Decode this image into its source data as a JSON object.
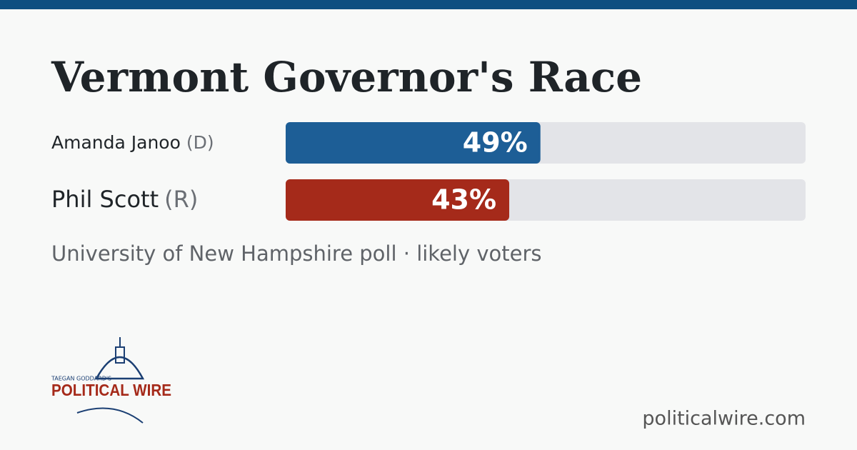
{
  "chart_data": {
    "type": "bar",
    "title": "Vermont Governor's Race",
    "categories": [
      "Amanda Janoo",
      "Phil Scott"
    ],
    "parties": [
      "(D)",
      "(R)"
    ],
    "values": [
      49,
      43
    ],
    "value_labels": [
      "49%",
      "43%"
    ],
    "colors": [
      "#1d5e96",
      "#a52a1a"
    ],
    "xlim": [
      0,
      100
    ],
    "note": "University of New Hampshire poll · likely voters"
  },
  "branding": {
    "logo_top": "TAEGAN GODDARD'S",
    "logo_name": "POLITICAL WIRE",
    "site": "politicalwire.com"
  }
}
